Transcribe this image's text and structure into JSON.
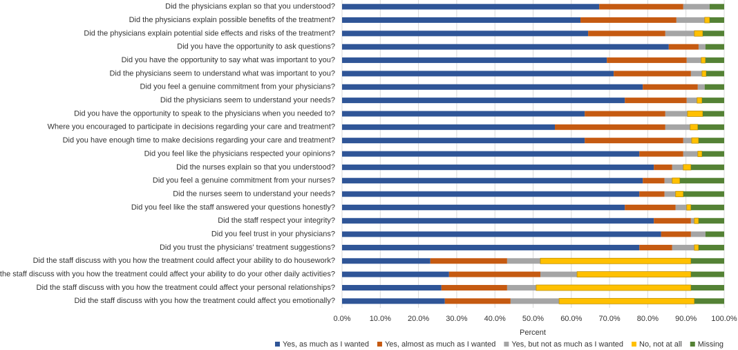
{
  "chart_data": {
    "type": "stacked-barh",
    "x_label": "Percent",
    "categories": [
      "Did the physicians explan so that you understood?",
      "Did the physicians explain possible benefits of the treatment?",
      "Did the physicians explain potential side effects and risks of the treatment?",
      "Did you have the opportunity to ask questions?",
      "Did you have the opportunity to say what was important to you?",
      "Did the physicians seem to understand what was important to you?",
      "Did you feel a genuine commitment from your physicians?",
      "Did the physicians seem to understand your needs?",
      "Did you have the opportunity to speak to the physicians when you needed to?",
      "Where you encouraged to participate in decisions regarding your care and treatment?",
      "Did you have enough time to make decisions regarding your care and treatment?",
      "Did you feel like the physicians respected your opinions?",
      "Did the nurses explain so that you understood?",
      "Did you feel a genuine commitment from your nurses?",
      "Did the nurses seem to understand your needs?",
      "Did you feel like the staff answered your questions honestly?",
      "Did the staff respect your integrity?",
      "Did you feel trust in your physicians?",
      "Did you trust the physicians' treatment suggestions?",
      "Did the staff discuss with you how the treatment could affect your ability to do housework?",
      "Did the staff discuss with you how the treatment could affect your ability to do your other daily activities?",
      "Did the staff discuss with you how the treatment could affect your personal relationships?",
      "Did the staff discuss with you how the treatment could affect you emotionally?"
    ],
    "series": [
      {
        "name": "Yes, as much as I wanted",
        "color": "#2f5597",
        "values": [
          67.3,
          62.4,
          64.4,
          85.5,
          69.3,
          71.1,
          78.7,
          74.0,
          63.5,
          55.7,
          63.5,
          77.8,
          81.6,
          78.7,
          77.8,
          74.0,
          81.6,
          83.5,
          77.8,
          23.1,
          28.0,
          26.0,
          26.9
        ]
      },
      {
        "name": "Yes, almost as much as I wanted",
        "color": "#c55a11",
        "values": [
          22.0,
          25.1,
          20.2,
          7.8,
          20.9,
          20.2,
          14.4,
          16.2,
          21.1,
          28.9,
          25.8,
          11.5,
          4.8,
          5.7,
          6.6,
          13.3,
          9.7,
          7.8,
          8.6,
          20.1,
          23.9,
          17.2,
          17.2
        ]
      },
      {
        "name": "Yes, but not as much as I wanted",
        "color": "#a5a5a5",
        "values": [
          6.9,
          7.4,
          7.6,
          1.8,
          3.8,
          2.9,
          1.8,
          2.7,
          5.8,
          6.5,
          2.2,
          3.8,
          2.9,
          2.0,
          2.9,
          2.9,
          0.9,
          3.8,
          5.8,
          8.7,
          9.6,
          7.6,
          12.7
        ]
      },
      {
        "name": "No, not at all",
        "color": "#ffc000",
        "values": [
          0,
          1.3,
          2.2,
          0,
          1.1,
          1.1,
          0,
          1.3,
          4.0,
          2.0,
          1.8,
          1.1,
          2.0,
          2.0,
          2.0,
          1.1,
          1.1,
          0,
          1.1,
          39.4,
          29.8,
          40.5,
          35.4
        ]
      },
      {
        "name": "Missing",
        "color": "#548235",
        "values": [
          3.8,
          3.8,
          5.6,
          4.9,
          4.9,
          4.7,
          5.1,
          5.8,
          5.6,
          6.9,
          6.7,
          5.8,
          8.7,
          11.6,
          10.7,
          8.7,
          6.7,
          4.9,
          6.7,
          8.7,
          8.7,
          8.7,
          7.8
        ]
      }
    ],
    "xlim": [
      0,
      100
    ],
    "xticks": [
      {
        "value": 0,
        "label": "0.0%"
      },
      {
        "value": 10,
        "label": "10.0%"
      },
      {
        "value": 20,
        "label": "20.0%"
      },
      {
        "value": 30,
        "label": "30.0%"
      },
      {
        "value": 40,
        "label": "40.0%"
      },
      {
        "value": 50,
        "label": "50.0%"
      },
      {
        "value": 60,
        "label": "60.0%"
      },
      {
        "value": 70,
        "label": "70.0%"
      },
      {
        "value": 80,
        "label": "80.0%"
      },
      {
        "value": 90,
        "label": "90.0%"
      },
      {
        "value": 100,
        "label": "100.0%"
      }
    ],
    "grid": true
  }
}
